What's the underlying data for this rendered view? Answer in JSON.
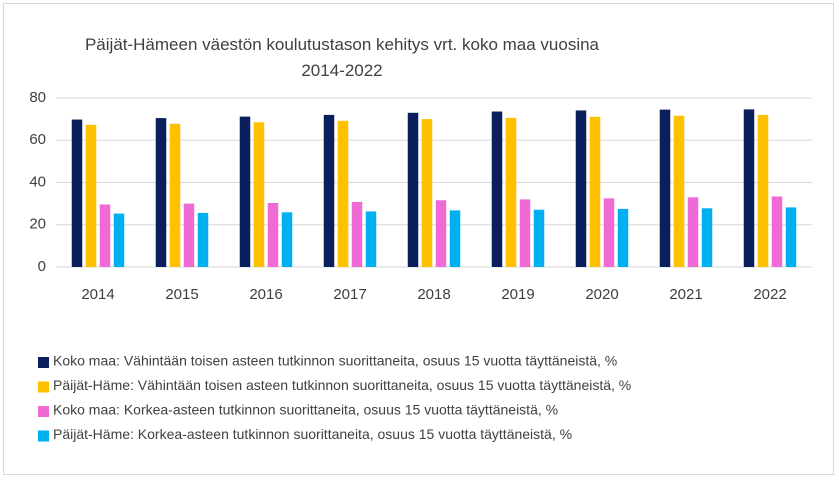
{
  "chart_data": {
    "type": "bar",
    "title": "Päijät-Hämeen väestön koulutustason kehitys vrt. koko maa vuosina 2014-2022",
    "categories": [
      "2014",
      "2015",
      "2016",
      "2017",
      "2018",
      "2019",
      "2020",
      "2021",
      "2022"
    ],
    "series": [
      {
        "name": "Koko maa: Vähintään toisen asteen tutkinnon suorittaneita, osuus 15 vuotta täyttäneistä, %",
        "color": "#0b1f5c",
        "values": [
          69.8,
          70.5,
          71.2,
          72.0,
          73.0,
          73.6,
          74.1,
          74.5,
          74.6
        ]
      },
      {
        "name": "Päijät-Häme: Vähintään toisen asteen tutkinnon suorittaneita, osuus 15 vuotta täyttäneistä, %",
        "color": "#ffc000",
        "values": [
          67.3,
          67.8,
          68.5,
          69.2,
          70.0,
          70.6,
          71.1,
          71.6,
          72.0
        ]
      },
      {
        "name": "Koko maa: Korkea-asteen tutkinnon suorittaneita, osuus 15 vuotta täyttäneistä, %",
        "color": "#f06ad6",
        "values": [
          29.6,
          30.0,
          30.3,
          30.8,
          31.6,
          32.0,
          32.5,
          33.0,
          33.4
        ]
      },
      {
        "name": "Päijät-Häme: Korkea-asteen tutkinnon suorittaneita, osuus 15 vuotta täyttäneistä, %",
        "color": "#00b0f0",
        "values": [
          25.3,
          25.6,
          25.9,
          26.3,
          26.8,
          27.1,
          27.5,
          27.8,
          28.2
        ]
      }
    ],
    "ylim": [
      0,
      80
    ],
    "yticks": [
      0,
      20,
      40,
      60,
      80
    ],
    "grid": true,
    "legend": "bottom"
  }
}
